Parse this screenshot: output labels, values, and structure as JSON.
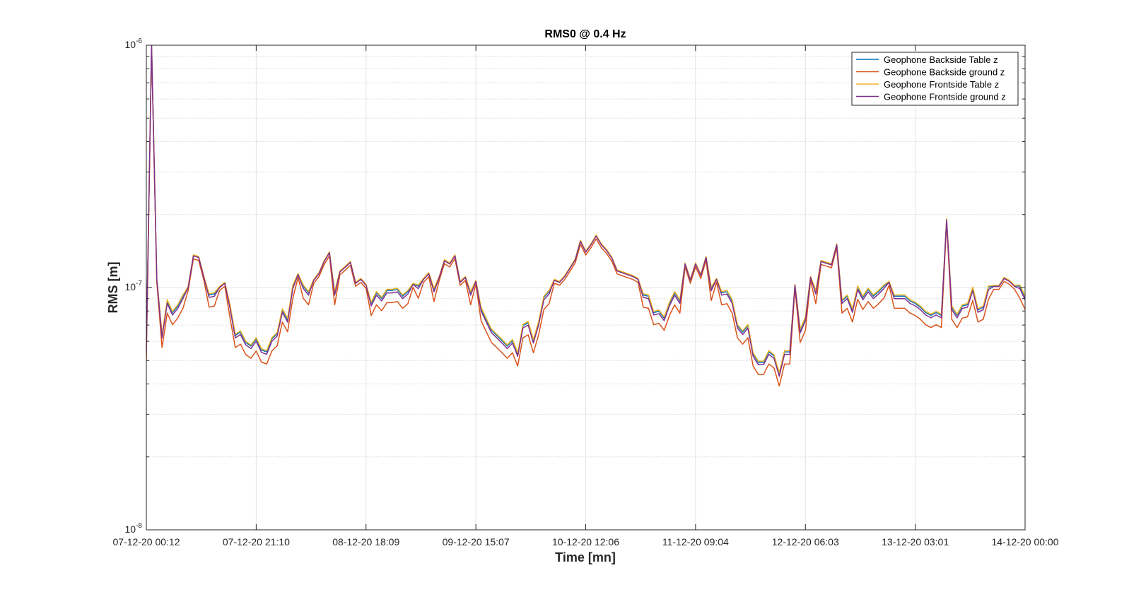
{
  "chart_data": {
    "type": "line",
    "title": "RMS0 @ 0.4 Hz",
    "xlabel": "Time [mn]",
    "ylabel": "RMS [m]",
    "yscale": "log",
    "ylim": [
      1e-08,
      1e-06
    ],
    "ytick_labels": [
      {
        "base": "10",
        "exp": "-8"
      },
      {
        "base": "10",
        "exp": "-7"
      },
      {
        "base": "10",
        "exp": "-6"
      }
    ],
    "xtick_labels": [
      "07-12-20 00:12",
      "07-12-20 21:10",
      "08-12-20 18:09",
      "09-12-20 15:07",
      "10-12-20 12:06",
      "11-12-20 09:04",
      "12-12-20 06:03",
      "13-12-20 03:01",
      "14-12-20 00:00"
    ],
    "grid": true,
    "legend_position": "top-right",
    "colors": [
      "#0072BD",
      "#D95319",
      "#EDB120",
      "#7E2F8E"
    ],
    "series": [
      {
        "name": "Geophone Backside Table z",
        "offset": 0.01
      },
      {
        "name": "Geophone Backside ground z",
        "offset": -0.04
      },
      {
        "name": "Geophone Frontside Table z",
        "offset": 0.015
      },
      {
        "name": "Geophone Frontside ground z",
        "offset": 0.0
      }
    ],
    "x_step_ticks": 0.125,
    "values_base": [
      0.55,
      10,
      1.08,
      0.62,
      0.86,
      0.77,
      0.82,
      0.9,
      1.0,
      1.35,
      1.33,
      1.1,
      0.91,
      0.92,
      1.0,
      1.04,
      0.82,
      0.62,
      0.64,
      0.58,
      0.56,
      0.6,
      0.54,
      0.53,
      0.6,
      0.63,
      0.79,
      0.72,
      0.99,
      1.13,
      0.99,
      0.93,
      1.07,
      1.14,
      1.28,
      1.39,
      0.93,
      1.16,
      1.21,
      1.27,
      1.04,
      1.08,
      1.02,
      0.84,
      0.93,
      0.88,
      0.95,
      0.95,
      0.96,
      0.9,
      0.94,
      1.03,
      0.99,
      1.08,
      1.14,
      0.96,
      1.1,
      1.29,
      1.25,
      1.35,
      1.05,
      1.1,
      0.93,
      1.06,
      0.8,
      0.72,
      0.65,
      0.62,
      0.59,
      0.56,
      0.59,
      0.52,
      0.68,
      0.7,
      0.59,
      0.7,
      0.89,
      0.94,
      1.07,
      1.05,
      1.11,
      1.2,
      1.3,
      1.55,
      1.4,
      1.5,
      1.63,
      1.5,
      1.42,
      1.32,
      1.17,
      1.15,
      1.13,
      1.11,
      1.08,
      0.91,
      0.9,
      0.77,
      0.78,
      0.73,
      0.84,
      0.93,
      0.86,
      1.25,
      1.07,
      1.25,
      1.12,
      1.33,
      0.97,
      1.08,
      0.93,
      0.94,
      0.86,
      0.68,
      0.64,
      0.68,
      0.52,
      0.48,
      0.48,
      0.53,
      0.51,
      0.43,
      0.53,
      0.53,
      1.02,
      0.65,
      0.73,
      1.1,
      0.94,
      1.28,
      1.26,
      1.24,
      1.5,
      0.86,
      0.9,
      0.79,
      0.98,
      0.89,
      0.96,
      0.9,
      0.94,
      0.99,
      1.05,
      0.9,
      0.9,
      0.9,
      0.86,
      0.84,
      0.81,
      0.77,
      0.75,
      0.77,
      0.75,
      1.9,
      0.81,
      0.75,
      0.82,
      0.83,
      0.97,
      0.79,
      0.81,
      0.98,
      1.01,
      1.01,
      1.09,
      1.06,
      1.01,
      0.99,
      0.89
    ]
  }
}
